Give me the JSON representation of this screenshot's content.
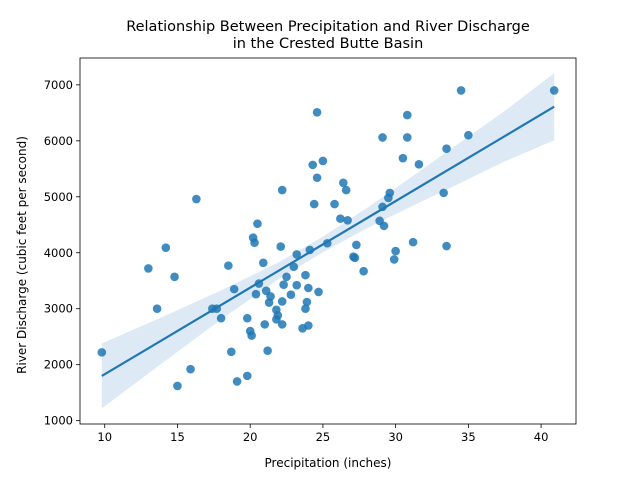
{
  "chart_data": {
    "type": "scatter",
    "title": "Relationship Between Precipitation and River Discharge\nin the Crested Butte Basin",
    "title_lines": [
      "Relationship Between Precipitation and River Discharge",
      "in the Crested Butte Basin"
    ],
    "xlabel": "Precipitation (inches)",
    "ylabel": "River Discharge (cubic feet per second)",
    "xlim": [
      8.3,
      42.4
    ],
    "ylim": [
      940,
      7480
    ],
    "xticks": [
      10,
      15,
      20,
      25,
      30,
      35,
      40
    ],
    "yticks": [
      1000,
      2000,
      3000,
      4000,
      5000,
      6000,
      7000
    ],
    "xtick_labels": [
      "10",
      "15",
      "20",
      "25",
      "30",
      "35",
      "40"
    ],
    "ytick_labels": [
      "1000",
      "2000",
      "3000",
      "4000",
      "5000",
      "6000",
      "7000"
    ],
    "grid": false,
    "legend": false,
    "point_color": "#1f77b4",
    "line_color": "#1f77b4",
    "band_color": "#c6dbef",
    "regression": {
      "x_range": [
        9.8,
        40.9
      ],
      "slope": 154.7,
      "intercept": 282,
      "ci_half_width": [
        {
          "x": 9.8,
          "w": 580
        },
        {
          "x": 14,
          "w": 410
        },
        {
          "x": 18,
          "w": 260
        },
        {
          "x": 22,
          "w": 150
        },
        {
          "x": 25,
          "w": 140
        },
        {
          "x": 28,
          "w": 180
        },
        {
          "x": 31,
          "w": 260
        },
        {
          "x": 34,
          "w": 350
        },
        {
          "x": 37.5,
          "w": 450
        },
        {
          "x": 40.9,
          "w": 600
        }
      ]
    },
    "points": [
      {
        "x": 9.8,
        "y": 2220
      },
      {
        "x": 13.0,
        "y": 3720
      },
      {
        "x": 13.6,
        "y": 3000
      },
      {
        "x": 14.2,
        "y": 4090
      },
      {
        "x": 14.8,
        "y": 3570
      },
      {
        "x": 15.0,
        "y": 1620
      },
      {
        "x": 15.9,
        "y": 1920
      },
      {
        "x": 16.3,
        "y": 4960
      },
      {
        "x": 17.4,
        "y": 3000
      },
      {
        "x": 17.7,
        "y": 3000
      },
      {
        "x": 18.0,
        "y": 2830
      },
      {
        "x": 18.5,
        "y": 3770
      },
      {
        "x": 18.7,
        "y": 2230
      },
      {
        "x": 18.9,
        "y": 3350
      },
      {
        "x": 19.1,
        "y": 1700
      },
      {
        "x": 19.8,
        "y": 1800
      },
      {
        "x": 19.8,
        "y": 2830
      },
      {
        "x": 20.0,
        "y": 2600
      },
      {
        "x": 20.1,
        "y": 2520
      },
      {
        "x": 20.2,
        "y": 4270
      },
      {
        "x": 20.3,
        "y": 4180
      },
      {
        "x": 20.4,
        "y": 3260
      },
      {
        "x": 20.5,
        "y": 4520
      },
      {
        "x": 20.6,
        "y": 3450
      },
      {
        "x": 20.9,
        "y": 3820
      },
      {
        "x": 21.0,
        "y": 2720
      },
      {
        "x": 21.1,
        "y": 3320
      },
      {
        "x": 21.2,
        "y": 2250
      },
      {
        "x": 21.3,
        "y": 3110
      },
      {
        "x": 21.4,
        "y": 3220
      },
      {
        "x": 21.8,
        "y": 2980
      },
      {
        "x": 21.8,
        "y": 2810
      },
      {
        "x": 21.9,
        "y": 2880
      },
      {
        "x": 22.1,
        "y": 4110
      },
      {
        "x": 22.2,
        "y": 3130
      },
      {
        "x": 22.2,
        "y": 2720
      },
      {
        "x": 22.2,
        "y": 5120
      },
      {
        "x": 22.3,
        "y": 3430
      },
      {
        "x": 22.5,
        "y": 3570
      },
      {
        "x": 22.8,
        "y": 3250
      },
      {
        "x": 23.0,
        "y": 3750
      },
      {
        "x": 23.2,
        "y": 3420
      },
      {
        "x": 23.2,
        "y": 3970
      },
      {
        "x": 23.6,
        "y": 2650
      },
      {
        "x": 23.8,
        "y": 3000
      },
      {
        "x": 23.8,
        "y": 3600
      },
      {
        "x": 23.9,
        "y": 3120
      },
      {
        "x": 24.0,
        "y": 3370
      },
      {
        "x": 24.0,
        "y": 2700
      },
      {
        "x": 24.1,
        "y": 4050
      },
      {
        "x": 24.3,
        "y": 5570
      },
      {
        "x": 24.4,
        "y": 4870
      },
      {
        "x": 24.6,
        "y": 6510
      },
      {
        "x": 24.6,
        "y": 5340
      },
      {
        "x": 24.7,
        "y": 3300
      },
      {
        "x": 25.0,
        "y": 5640
      },
      {
        "x": 25.3,
        "y": 4170
      },
      {
        "x": 25.8,
        "y": 4870
      },
      {
        "x": 26.2,
        "y": 4610
      },
      {
        "x": 26.4,
        "y": 5250
      },
      {
        "x": 26.6,
        "y": 5120
      },
      {
        "x": 26.7,
        "y": 4580
      },
      {
        "x": 27.1,
        "y": 3930
      },
      {
        "x": 27.2,
        "y": 3910
      },
      {
        "x": 27.3,
        "y": 4140
      },
      {
        "x": 27.8,
        "y": 3670
      },
      {
        "x": 28.9,
        "y": 4570
      },
      {
        "x": 29.1,
        "y": 4820
      },
      {
        "x": 29.1,
        "y": 6060
      },
      {
        "x": 29.2,
        "y": 4480
      },
      {
        "x": 29.5,
        "y": 4980
      },
      {
        "x": 29.6,
        "y": 5070
      },
      {
        "x": 29.9,
        "y": 3880
      },
      {
        "x": 30.0,
        "y": 4030
      },
      {
        "x": 30.5,
        "y": 5690
      },
      {
        "x": 30.8,
        "y": 6460
      },
      {
        "x": 30.8,
        "y": 6060
      },
      {
        "x": 31.2,
        "y": 4190
      },
      {
        "x": 31.6,
        "y": 5580
      },
      {
        "x": 33.3,
        "y": 5070
      },
      {
        "x": 33.5,
        "y": 5860
      },
      {
        "x": 33.5,
        "y": 4120
      },
      {
        "x": 34.5,
        "y": 6900
      },
      {
        "x": 35.0,
        "y": 6100
      },
      {
        "x": 40.9,
        "y": 6900
      }
    ]
  }
}
